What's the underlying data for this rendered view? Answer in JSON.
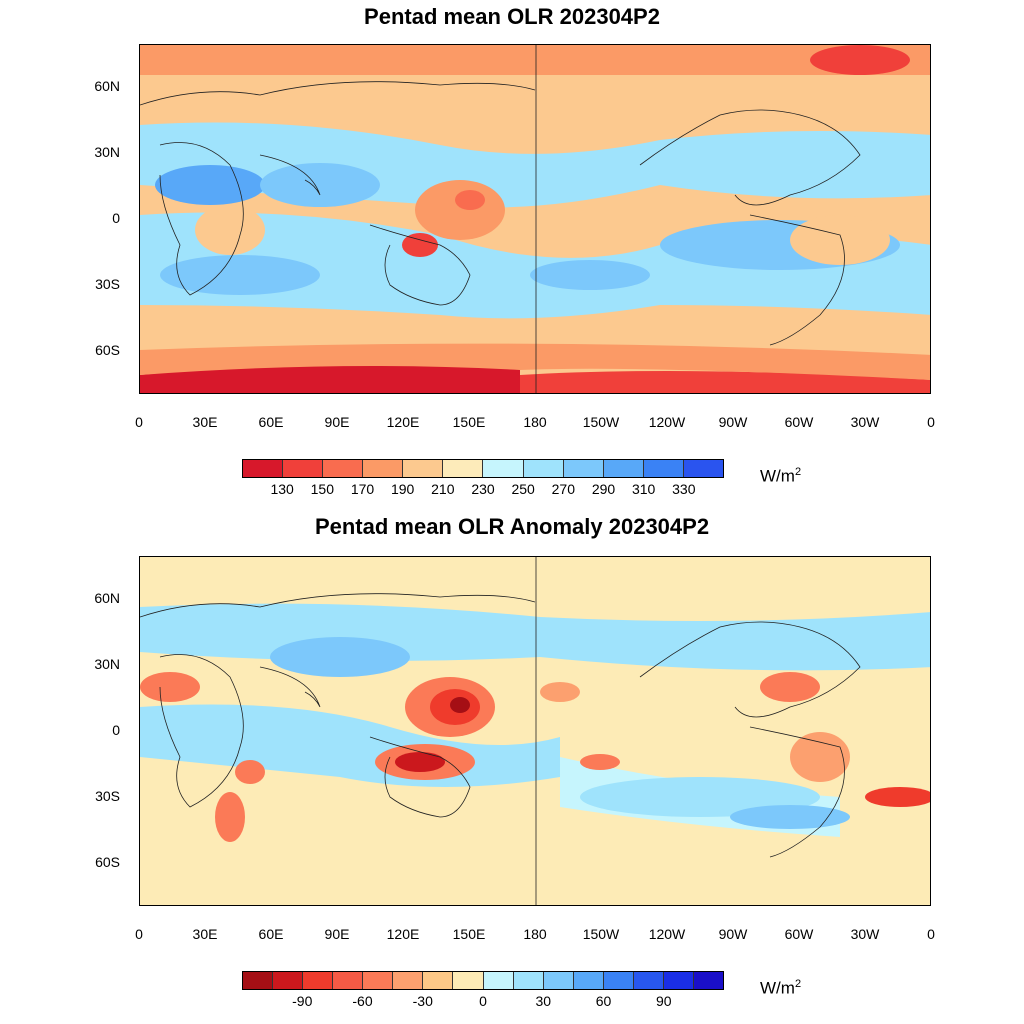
{
  "panel1": {
    "title": "Pentad mean OLR 202304P2",
    "colorbar": {
      "colors": [
        "#d7182b",
        "#f0403a",
        "#f96c4f",
        "#fb9a66",
        "#fcc98f",
        "#fdebba",
        "#c6f5fd",
        "#9fe3fc",
        "#7cc8fb",
        "#58a8f8",
        "#3a82f5",
        "#2a54ef"
      ],
      "labels": [
        "130",
        "150",
        "170",
        "190",
        "210",
        "230",
        "250",
        "270",
        "290",
        "310",
        "330"
      ],
      "unit": "W/m",
      "unit_sup": "2"
    }
  },
  "panel2": {
    "title": "Pentad mean OLR Anomaly 202304P2",
    "colorbar": {
      "colors": [
        "#a50f15",
        "#cb181d",
        "#ef3b2c",
        "#f55a45",
        "#fb7a57",
        "#fca06f",
        "#fdc887",
        "#fdebb6",
        "#c6f5fd",
        "#9fe3fc",
        "#7cc8fb",
        "#58a8f8",
        "#3a82f5",
        "#2857ef",
        "#1a2ee6",
        "#1a0fc9"
      ],
      "labels": [
        "-90",
        "-60",
        "-30",
        "0",
        "30",
        "60",
        "90"
      ],
      "unit": "W/m",
      "unit_sup": "2"
    }
  },
  "axes": {
    "lat_labels": [
      "60N",
      "30N",
      "0",
      "30S",
      "60S"
    ],
    "lon_labels": [
      "0",
      "30E",
      "60E",
      "90E",
      "120E",
      "150E",
      "180",
      "150W",
      "120W",
      "90W",
      "60W",
      "30W",
      "0"
    ]
  }
}
